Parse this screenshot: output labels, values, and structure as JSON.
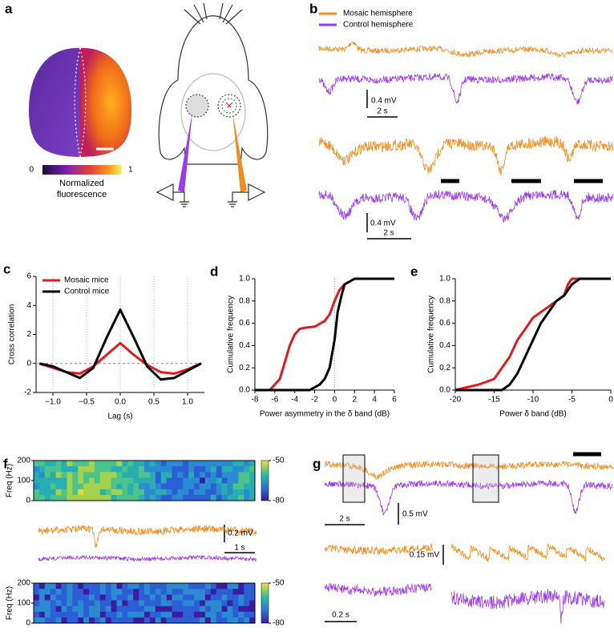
{
  "panels": {
    "a": {
      "label": "a",
      "colorbar_min": "0",
      "colorbar_max": "1",
      "colorbar_title": [
        "Normalized",
        "fluorescence"
      ]
    },
    "b": {
      "label": "b",
      "legend": [
        "Mosaic hemisphere",
        "Control hemisphere"
      ],
      "scalebars": [
        [
          "0.4 mV",
          "2 s"
        ],
        [
          "0.4 mV",
          "2 s"
        ]
      ]
    },
    "f": {
      "label": "f",
      "heatmaps": [
        {
          "ylabel": "Freq (Hz)",
          "yticks": [
            0,
            100,
            200
          ],
          "cticks": [
            -50,
            -80
          ]
        },
        {
          "ylabel": "Freq (Hz)",
          "yticks": [
            0,
            100,
            200
          ],
          "cticks": [
            -50,
            -80
          ]
        }
      ],
      "scalebars": [
        "0.2 mV",
        "1 s"
      ]
    },
    "g": {
      "label": "g",
      "scalebars": [
        "0.5 mV",
        "2 s",
        "0.15 mV",
        "0.2 s"
      ]
    }
  },
  "chart_data": [
    {
      "type": "line",
      "label": "c",
      "ylabel": "Cross correlation",
      "xlabel": "Lag (s)",
      "x": [
        -1.2,
        -1.0,
        -0.8,
        -0.6,
        -0.4,
        -0.2,
        0,
        0.2,
        0.4,
        0.6,
        0.8,
        1.0,
        1.2
      ],
      "series": [
        {
          "name": "Mosaic mice",
          "color": "#e31a1c",
          "values": [
            0,
            -0.3,
            -0.6,
            -0.7,
            -0.2,
            0.6,
            1.4,
            0.6,
            -0.1,
            -0.6,
            -0.7,
            -0.4,
            0
          ]
        },
        {
          "name": "Control mice",
          "color": "#000000",
          "values": [
            0,
            -0.2,
            -0.6,
            -1.0,
            -0.3,
            1.8,
            3.7,
            1.8,
            -0.2,
            -1.1,
            -1.0,
            -0.5,
            0
          ]
        }
      ],
      "xlim": [
        -1.25,
        1.25
      ],
      "ylim": [
        -2,
        6
      ],
      "xticks": [
        {
          "value": -1,
          "label": "−1.0"
        },
        {
          "value": -0.5,
          "label": "−0.5"
        },
        {
          "value": 0,
          "label": "0.0"
        },
        {
          "value": 0.5,
          "label": "0.5"
        },
        {
          "value": 1,
          "label": "1.0"
        }
      ],
      "yticks": [
        -2,
        0,
        2,
        4,
        6
      ],
      "grid_x": true,
      "hline": 0,
      "legend": "upper left"
    },
    {
      "type": "line",
      "label": "d",
      "ylabel": "Cumulative frequency",
      "xlabel": "Power asymmetry in the δ band (dB)",
      "series": [
        {
          "name": "Mosaic mice",
          "color": "#e31a1c",
          "x": [
            -6.5,
            -5.5,
            -5,
            -4.5,
            -4,
            -3.5,
            -3,
            -2,
            -1,
            -0.5,
            0,
            0.5,
            1,
            2,
            6
          ],
          "values": [
            0,
            0.1,
            0.25,
            0.4,
            0.5,
            0.55,
            0.56,
            0.57,
            0.62,
            0.68,
            0.8,
            0.9,
            0.95,
            1,
            1
          ]
        },
        {
          "name": "Control mice",
          "color": "#000000",
          "x": [
            -8,
            -2.5,
            -1.5,
            -1,
            -0.5,
            0,
            0.3,
            0.7,
            1,
            2,
            6
          ],
          "values": [
            0,
            0,
            0.05,
            0.1,
            0.2,
            0.45,
            0.7,
            0.85,
            0.95,
            1,
            1
          ]
        }
      ],
      "xlim": [
        -8,
        6
      ],
      "ylim": [
        0,
        1
      ],
      "xticks": [
        -8,
        -6,
        -4,
        -2,
        0,
        2,
        4,
        6
      ],
      "yticks": [
        {
          "value": 0,
          "label": "0.0"
        },
        0.2,
        0.4,
        0.6,
        0.8,
        {
          "value": 1,
          "label": "1.0"
        }
      ],
      "vline": 0
    },
    {
      "type": "line",
      "label": "e",
      "ylabel": "Cumulative frequency",
      "xlabel": "Power δ band (dB)",
      "series": [
        {
          "name": "Mosaic mice",
          "color": "#e31a1c",
          "x": [
            -20,
            -17,
            -15,
            -14,
            -13,
            -12,
            -11,
            -10,
            -9,
            -8,
            -7,
            -6,
            -5.5,
            -5,
            0
          ],
          "values": [
            0,
            0.05,
            0.1,
            0.2,
            0.3,
            0.45,
            0.55,
            0.65,
            0.7,
            0.75,
            0.8,
            0.85,
            0.95,
            1,
            1
          ]
        },
        {
          "name": "Control mice",
          "color": "#000000",
          "x": [
            -20,
            -14,
            -13,
            -12,
            -11,
            -10,
            -9,
            -8,
            -7,
            -6,
            -5,
            -4,
            0
          ],
          "values": [
            0,
            0,
            0.05,
            0.15,
            0.3,
            0.45,
            0.6,
            0.7,
            0.8,
            0.85,
            0.95,
            1,
            1
          ]
        }
      ],
      "xlim": [
        -20,
        0
      ],
      "ylim": [
        0,
        1
      ],
      "xticks": [
        -20,
        -15,
        -10,
        -5,
        0
      ],
      "yticks": [
        {
          "value": 0,
          "label": "0.0"
        },
        0.2,
        0.4,
        0.6,
        0.8,
        {
          "value": 1,
          "label": "1.0"
        }
      ]
    }
  ]
}
